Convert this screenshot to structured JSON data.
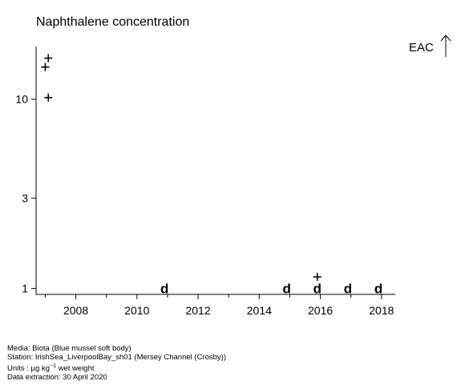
{
  "chart_data": {
    "type": "scatter",
    "title": "Naphthalene concentration",
    "xlabel": "",
    "ylabel": "",
    "y_scale": "log",
    "xlim": [
      2006.7,
      2018.45
    ],
    "ylim": [
      0.93,
      19
    ],
    "x_ticks": [
      2008,
      2010,
      2012,
      2014,
      2016,
      2018
    ],
    "y_ticks": [
      1,
      3,
      10
    ],
    "grid": false,
    "points": [
      {
        "x": 2007.1,
        "y": 16.5,
        "marker": "plus"
      },
      {
        "x": 2007.0,
        "y": 14.8,
        "marker": "plus"
      },
      {
        "x": 2007.1,
        "y": 10.2,
        "marker": "plus"
      },
      {
        "x": 2010.9,
        "y": 1.0,
        "marker": "d"
      },
      {
        "x": 2014.9,
        "y": 1.0,
        "marker": "d"
      },
      {
        "x": 2015.9,
        "y": 1.15,
        "marker": "plus"
      },
      {
        "x": 2015.9,
        "y": 1.0,
        "marker": "d"
      },
      {
        "x": 2016.9,
        "y": 1.0,
        "marker": "d"
      },
      {
        "x": 2017.9,
        "y": 1.0,
        "marker": "d"
      }
    ],
    "reference": {
      "label": "EAC",
      "direction": "above"
    }
  },
  "footer": {
    "media": "Media: Biota (Blue mussel soft body)",
    "station": "Station: IrishSea_LiverpoolBay_sh01 (Mersey Channel (Crosby))",
    "units_prefix": "Units :  µg kg",
    "units_exp": "−1",
    "units_suffix": " wet weight",
    "extraction": "Data extraction: 30 April 2020"
  }
}
